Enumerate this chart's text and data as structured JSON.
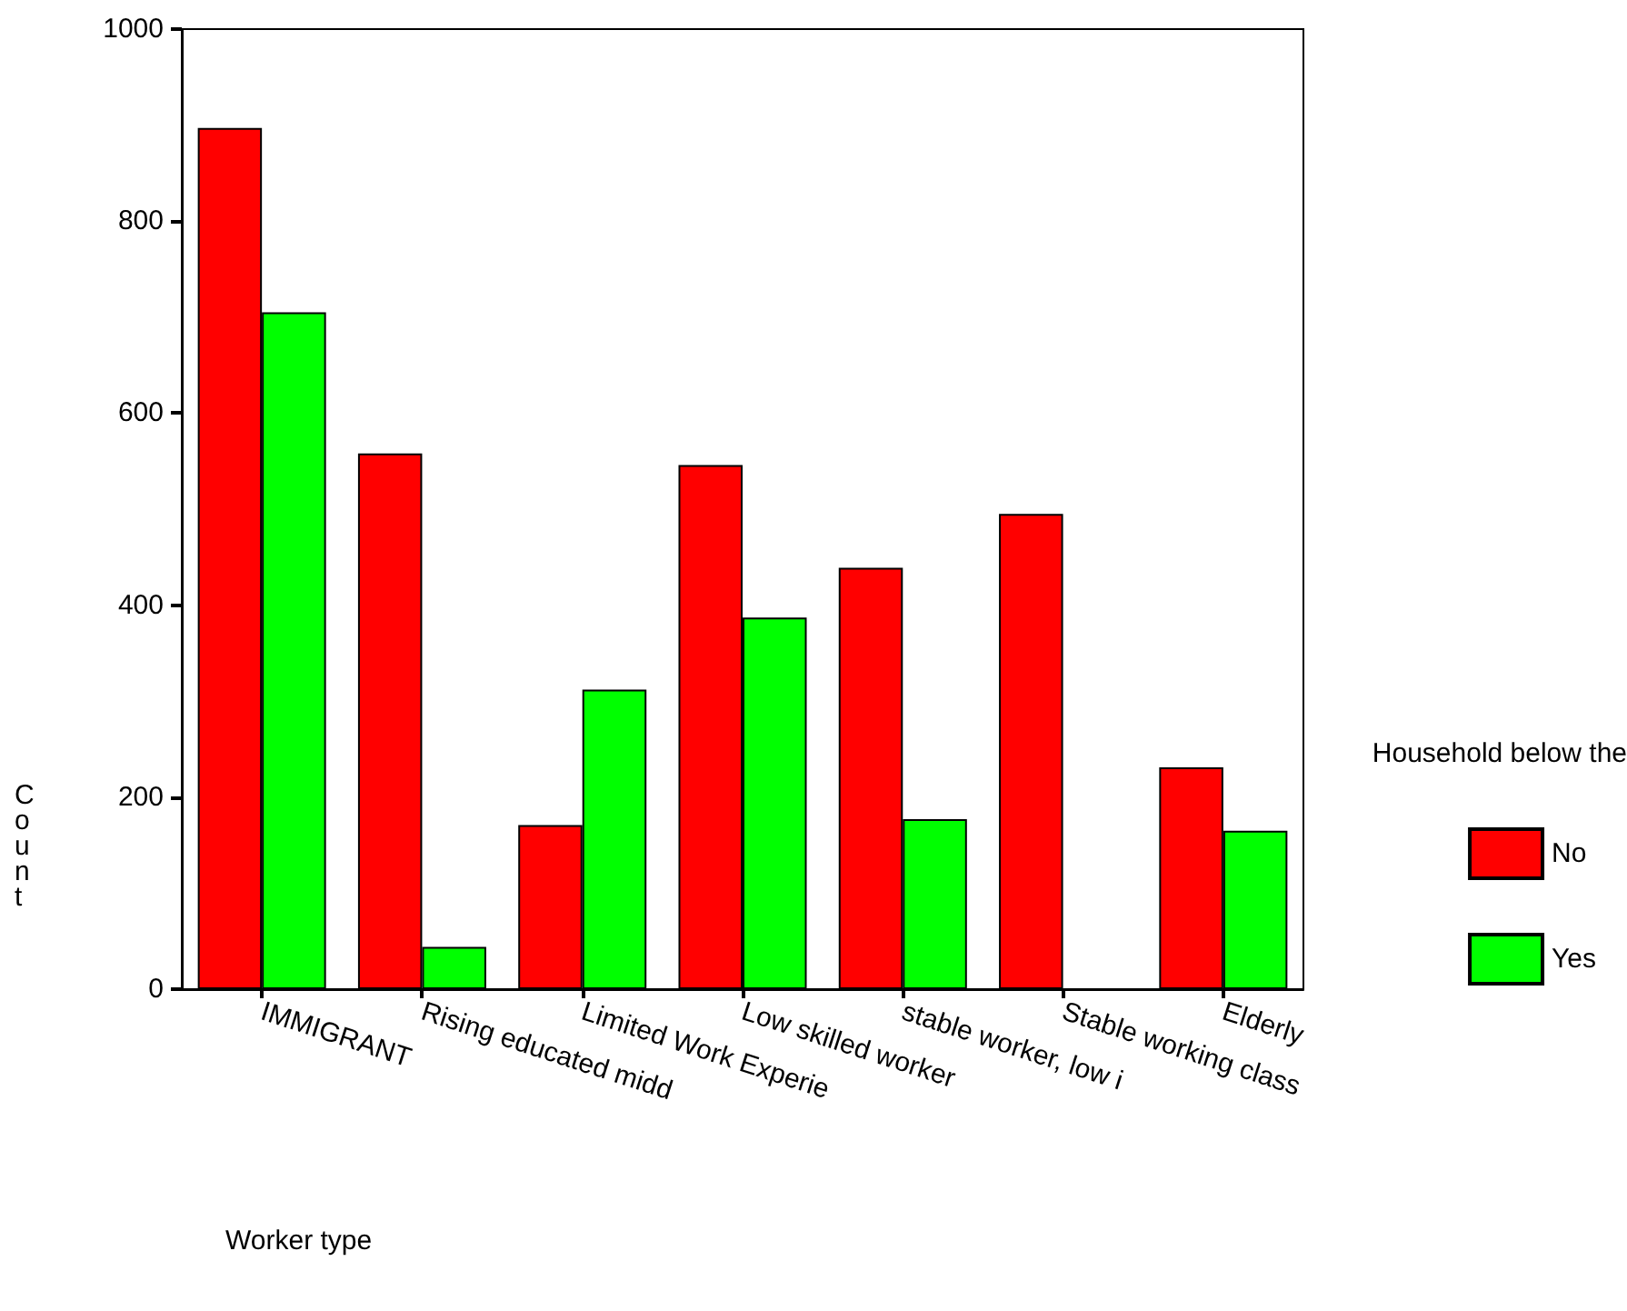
{
  "chart_data": {
    "type": "bar",
    "xlabel": "Worker type",
    "ylabel": "Count",
    "legend_title": "Household below the",
    "categories": [
      "IMMIGRANT",
      "Rising educated midd",
      "Limited Work Experie",
      "Low skilled worker",
      "stable worker, low i",
      "Stable working class",
      "Elderly"
    ],
    "series": [
      {
        "name": "No",
        "color": "#ff0000",
        "values": [
          897,
          558,
          171,
          546,
          439,
          495,
          231
        ]
      },
      {
        "name": "Yes",
        "color": "#00ff00",
        "values": [
          705,
          44,
          312,
          387,
          177,
          null,
          165
        ]
      }
    ],
    "ylim": [
      0,
      1000
    ],
    "yticks": [
      0,
      200,
      400,
      600,
      800,
      1000
    ],
    "grid": false,
    "legend": "right"
  }
}
